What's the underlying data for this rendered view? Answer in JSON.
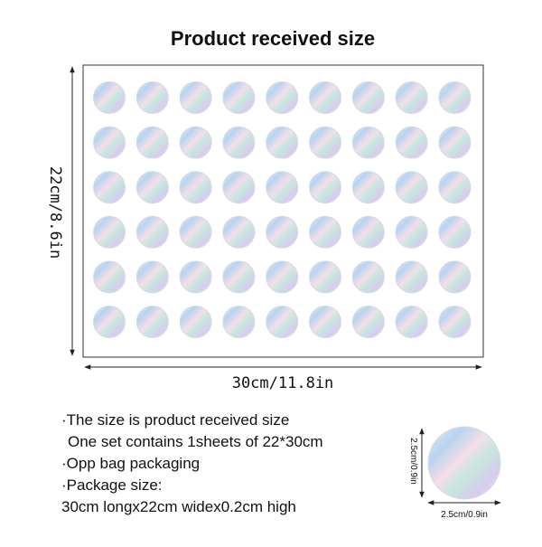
{
  "header": {
    "title": "Product received size"
  },
  "sheet": {
    "width_label": "30cm/11.8in",
    "height_label": "22cm/8.6in"
  },
  "description": {
    "lines": [
      "·The size is product received size",
      "One set contains 1sheets of 22*30cm",
      "·Opp bag packaging",
      "·Package size:",
      "30cm longx22cm widex0.2cm high"
    ]
  },
  "sticker": {
    "width_label": "2.5cm/0.9in",
    "height_label": "2.5cm/0.9in"
  }
}
